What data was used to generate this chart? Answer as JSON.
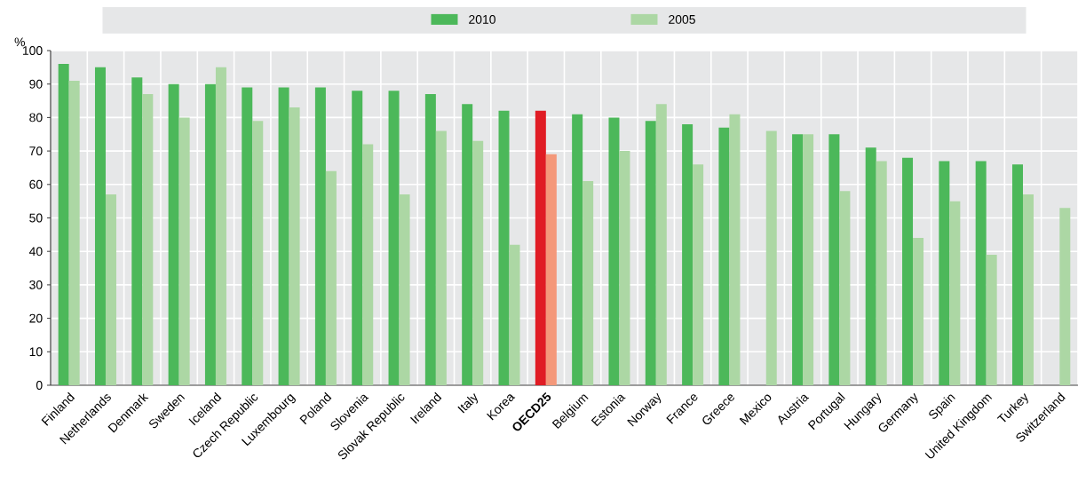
{
  "chart_data": {
    "type": "bar",
    "ylabel": "%",
    "categories": [
      "Finland",
      "Netherlands",
      "Denmark",
      "Sweden",
      "Iceland",
      "Czech Republic",
      "Luxembourg",
      "Poland",
      "Slovenia",
      "Slovak Republic",
      "Ireland",
      "Italy",
      "Korea",
      "OECD25",
      "Belgium",
      "Estonia",
      "Norway",
      "France",
      "Greece",
      "Mexico",
      "Austria",
      "Portugal",
      "Hungary",
      "Germany",
      "Spain",
      "United Kingdom",
      "Turkey",
      "Switzerland"
    ],
    "series": [
      {
        "name": "2010",
        "color": "#4cb85a",
        "colors": [
          "#4cb85a",
          "#4cb85a",
          "#4cb85a",
          "#4cb85a",
          "#4cb85a",
          "#4cb85a",
          "#4cb85a",
          "#4cb85a",
          "#4cb85a",
          "#4cb85a",
          "#4cb85a",
          "#4cb85a",
          "#4cb85a",
          "#e01c24",
          "#4cb85a",
          "#4cb85a",
          "#4cb85a",
          "#4cb85a",
          "#4cb85a",
          "#4cb85a",
          "#4cb85a",
          "#4cb85a",
          "#4cb85a",
          "#4cb85a",
          "#4cb85a",
          "#4cb85a",
          "#4cb85a",
          "#4cb85a"
        ],
        "values": [
          96,
          95,
          92,
          90,
          90,
          89,
          89,
          89,
          88,
          88,
          87,
          84,
          82,
          82,
          81,
          80,
          79,
          78,
          77,
          null,
          75,
          75,
          71,
          68,
          67,
          67,
          66,
          null
        ]
      },
      {
        "name": "2005",
        "color": "#acd7a4",
        "colors": [
          "#acd7a4",
          "#acd7a4",
          "#acd7a4",
          "#acd7a4",
          "#acd7a4",
          "#acd7a4",
          "#acd7a4",
          "#acd7a4",
          "#acd7a4",
          "#acd7a4",
          "#acd7a4",
          "#acd7a4",
          "#acd7a4",
          "#f4987a",
          "#acd7a4",
          "#acd7a4",
          "#acd7a4",
          "#acd7a4",
          "#acd7a4",
          "#acd7a4",
          "#acd7a4",
          "#acd7a4",
          "#acd7a4",
          "#acd7a4",
          "#acd7a4",
          "#acd7a4",
          "#acd7a4",
          "#acd7a4"
        ],
        "values": [
          91,
          57,
          87,
          80,
          95,
          79,
          83,
          64,
          72,
          57,
          76,
          73,
          42,
          69,
          61,
          70,
          84,
          66,
          81,
          76,
          75,
          58,
          67,
          44,
          55,
          39,
          57,
          53
        ]
      }
    ],
    "ylim": [
      0,
      100
    ],
    "yticks": [
      0,
      10,
      20,
      30,
      40,
      50,
      60,
      70,
      80,
      90,
      100
    ],
    "grid": true,
    "legend": "top"
  }
}
